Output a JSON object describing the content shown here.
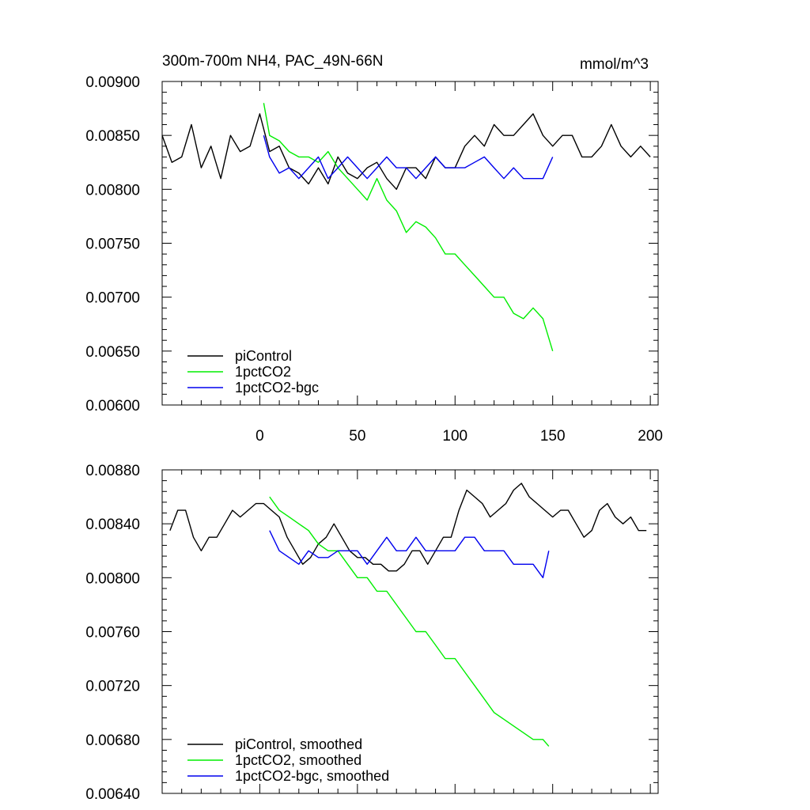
{
  "chart_data": [
    {
      "type": "line",
      "title": "300m-700m NH4, PAC_49N-66N",
      "units": "mmol/m^3",
      "xlim": [
        -50,
        204
      ],
      "ylim": [
        0.006,
        0.009
      ],
      "xticks": [
        0,
        50,
        100,
        150,
        200
      ],
      "xtick_labels": [
        "0",
        "50",
        "100",
        "150",
        "200"
      ],
      "yticks": [
        0.006,
        0.0065,
        0.007,
        0.0075,
        0.008,
        0.0085,
        0.009
      ],
      "ytick_labels": [
        "0.00600",
        "0.00650",
        "0.00700",
        "0.00750",
        "0.00800",
        "0.00850",
        "0.00900"
      ],
      "legend_position": "bottom-left",
      "series": [
        {
          "name": "piControl",
          "color": "#000000",
          "x": [
            -50,
            -45,
            -40,
            -35,
            -30,
            -25,
            -20,
            -15,
            -10,
            -5,
            0,
            5,
            10,
            15,
            20,
            25,
            30,
            35,
            40,
            45,
            50,
            55,
            60,
            65,
            70,
            75,
            80,
            85,
            90,
            95,
            100,
            105,
            110,
            115,
            120,
            125,
            130,
            135,
            140,
            145,
            150,
            155,
            160,
            165,
            170,
            175,
            180,
            185,
            190,
            195,
            200
          ],
          "values": [
            0.0085,
            0.00825,
            0.0083,
            0.0086,
            0.0082,
            0.0084,
            0.0081,
            0.0085,
            0.00835,
            0.0084,
            0.0087,
            0.00835,
            0.0084,
            0.0082,
            0.00815,
            0.00805,
            0.0082,
            0.00805,
            0.0083,
            0.00815,
            0.0081,
            0.0082,
            0.00825,
            0.0081,
            0.008,
            0.0082,
            0.0082,
            0.0081,
            0.0083,
            0.0082,
            0.0082,
            0.0084,
            0.0085,
            0.0084,
            0.0086,
            0.0085,
            0.0085,
            0.0086,
            0.0087,
            0.0085,
            0.0084,
            0.0085,
            0.0085,
            0.0083,
            0.0083,
            0.0084,
            0.0086,
            0.0084,
            0.0083,
            0.0084,
            0.0083
          ]
        },
        {
          "name": "1pctCO2",
          "color": "#00ee00",
          "x": [
            2,
            5,
            10,
            15,
            20,
            25,
            30,
            35,
            40,
            45,
            50,
            55,
            60,
            65,
            70,
            75,
            80,
            85,
            90,
            95,
            100,
            105,
            110,
            115,
            120,
            125,
            130,
            135,
            140,
            145,
            150
          ],
          "values": [
            0.0088,
            0.0085,
            0.00845,
            0.00835,
            0.0083,
            0.0083,
            0.00825,
            0.00835,
            0.0082,
            0.0081,
            0.008,
            0.0079,
            0.0081,
            0.0079,
            0.0078,
            0.0076,
            0.0077,
            0.00765,
            0.00755,
            0.0074,
            0.0074,
            0.0073,
            0.0072,
            0.0071,
            0.007,
            0.007,
            0.00685,
            0.0068,
            0.0069,
            0.0068,
            0.0065
          ]
        },
        {
          "name": "1pctCO2-bgc",
          "color": "#0000ee",
          "x": [
            2,
            5,
            10,
            15,
            20,
            25,
            30,
            35,
            40,
            45,
            50,
            55,
            60,
            65,
            70,
            75,
            80,
            85,
            90,
            95,
            100,
            105,
            110,
            115,
            120,
            125,
            130,
            135,
            140,
            145,
            150
          ],
          "values": [
            0.0085,
            0.0083,
            0.00815,
            0.0082,
            0.0081,
            0.0082,
            0.0083,
            0.0081,
            0.0082,
            0.0083,
            0.0082,
            0.0081,
            0.0082,
            0.0083,
            0.0082,
            0.0082,
            0.0081,
            0.0082,
            0.0083,
            0.0082,
            0.0082,
            0.0082,
            0.00825,
            0.0083,
            0.0082,
            0.0081,
            0.0082,
            0.0081,
            0.0081,
            0.0081,
            0.0083
          ]
        }
      ]
    },
    {
      "type": "line",
      "title": "",
      "xlim": [
        -50,
        204
      ],
      "ylim": [
        0.0064,
        0.0088
      ],
      "xticks": [
        0,
        50,
        100,
        150,
        200
      ],
      "yticks": [
        0.0064,
        0.0068,
        0.0072,
        0.0076,
        0.008,
        0.0084,
        0.0088
      ],
      "ytick_labels": [
        "0.00640",
        "0.00680",
        "0.00720",
        "0.00760",
        "0.00800",
        "0.00840",
        "0.00880"
      ],
      "legend_position": "bottom-left",
      "series": [
        {
          "name": "piControl, smoothed",
          "color": "#000000",
          "x": [
            -46,
            -42,
            -38,
            -34,
            -30,
            -26,
            -22,
            -18,
            -14,
            -10,
            -6,
            -2,
            2,
            6,
            10,
            14,
            18,
            22,
            26,
            30,
            34,
            38,
            42,
            46,
            50,
            54,
            58,
            62,
            66,
            70,
            74,
            78,
            82,
            86,
            90,
            94,
            98,
            102,
            106,
            110,
            114,
            118,
            122,
            126,
            130,
            134,
            138,
            142,
            146,
            150,
            154,
            158,
            162,
            166,
            170,
            174,
            178,
            182,
            186,
            190,
            194,
            198
          ],
          "values": [
            0.00835,
            0.0085,
            0.0085,
            0.0083,
            0.0082,
            0.0083,
            0.0083,
            0.0084,
            0.0085,
            0.00845,
            0.0085,
            0.00855,
            0.00855,
            0.0085,
            0.00845,
            0.0083,
            0.0082,
            0.0081,
            0.00815,
            0.00825,
            0.0083,
            0.0084,
            0.0083,
            0.0082,
            0.00815,
            0.00815,
            0.0081,
            0.0081,
            0.00805,
            0.00805,
            0.0081,
            0.0082,
            0.0082,
            0.0081,
            0.0082,
            0.0083,
            0.0083,
            0.0085,
            0.00865,
            0.0086,
            0.00855,
            0.00845,
            0.0085,
            0.00855,
            0.00865,
            0.0087,
            0.0086,
            0.00855,
            0.0085,
            0.00845,
            0.0085,
            0.0085,
            0.0084,
            0.0083,
            0.00835,
            0.0085,
            0.00855,
            0.00845,
            0.0084,
            0.00845,
            0.00835,
            0.00835
          ]
        },
        {
          "name": "1pctCO2, smoothed",
          "color": "#00ee00",
          "x": [
            5,
            10,
            15,
            20,
            25,
            30,
            35,
            40,
            45,
            50,
            55,
            60,
            65,
            70,
            75,
            80,
            85,
            90,
            95,
            100,
            105,
            110,
            115,
            120,
            125,
            130,
            135,
            140,
            145,
            148
          ],
          "values": [
            0.0086,
            0.0085,
            0.00845,
            0.0084,
            0.00835,
            0.00825,
            0.0082,
            0.0082,
            0.0081,
            0.008,
            0.008,
            0.0079,
            0.0079,
            0.0078,
            0.0077,
            0.0076,
            0.0076,
            0.0075,
            0.0074,
            0.0074,
            0.0073,
            0.0072,
            0.0071,
            0.007,
            0.00695,
            0.0069,
            0.00685,
            0.0068,
            0.0068,
            0.00675
          ]
        },
        {
          "name": "1pctCO2-bgc, smoothed",
          "color": "#0000ee",
          "x": [
            5,
            10,
            15,
            20,
            25,
            30,
            35,
            40,
            45,
            50,
            55,
            60,
            65,
            70,
            75,
            80,
            85,
            90,
            95,
            100,
            105,
            110,
            115,
            120,
            125,
            130,
            135,
            140,
            145,
            148
          ],
          "values": [
            0.00835,
            0.0082,
            0.00815,
            0.0081,
            0.0082,
            0.00815,
            0.00815,
            0.0082,
            0.0082,
            0.0082,
            0.0081,
            0.0082,
            0.0083,
            0.0082,
            0.0082,
            0.0083,
            0.0082,
            0.0082,
            0.0082,
            0.0082,
            0.0083,
            0.0083,
            0.0082,
            0.0082,
            0.0082,
            0.0081,
            0.0081,
            0.0081,
            0.008,
            0.0082
          ]
        }
      ]
    }
  ]
}
